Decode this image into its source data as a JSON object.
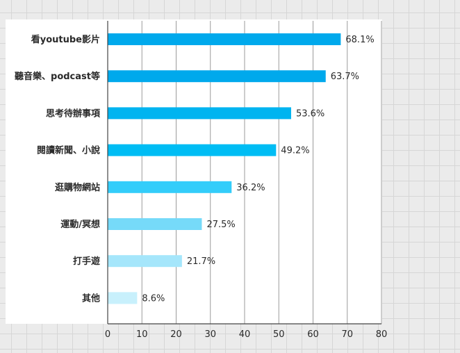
{
  "chart_data": {
    "type": "bar",
    "orientation": "horizontal",
    "categories": [
      "看youtube影片",
      "聽音樂、podcast等",
      "思考待辦事項",
      "閱讀新聞、小說",
      "逛購物網站",
      "運動/冥想",
      "打手遊",
      "其他"
    ],
    "values": [
      68.1,
      63.7,
      53.6,
      49.2,
      36.2,
      27.5,
      21.7,
      8.6
    ],
    "value_labels": [
      "68.1%",
      "63.7%",
      "53.6%",
      "49.2%",
      "36.2%",
      "27.5%",
      "21.7%",
      "8.6%"
    ],
    "bar_colors": [
      "#00a9ec",
      "#00a9ec",
      "#00b4f0",
      "#00bdf4",
      "#33cdfa",
      "#76daf9",
      "#a5e6fb",
      "#c8f0fc"
    ],
    "x_ticks": [
      "0",
      "10",
      "20",
      "30",
      "40",
      "50",
      "60",
      "70",
      "80"
    ],
    "xlim": [
      0,
      80
    ],
    "title": "",
    "xlabel": "",
    "ylabel": "",
    "grid": "vertical",
    "legend": "none"
  }
}
